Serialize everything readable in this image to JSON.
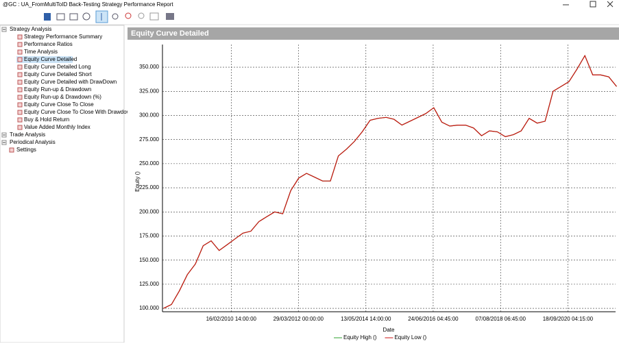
{
  "window": {
    "title": "@GC : UA_FromMultiToID Back-Testing Strategy Performance Report"
  },
  "tree": {
    "sections": [
      {
        "label": "Strategy Analysis",
        "children": [
          "Strategy Performance Summary",
          "Performance Ratios",
          "Time Analysis",
          "Equity Curve Detailed",
          "Equity Curve Detailed Long",
          "Equity Curve Detailed Short",
          "Equity Curve Detailed with DrawDown",
          "Equity Run-up & Drawdown",
          "Equity Run-up & Drawdown (%)",
          "Equity Curve Close To Close",
          "Equity Curve Close To Close With Drawdown",
          "Buy & Hold Return",
          "Value Added Monthly Index"
        ]
      },
      {
        "label": "Trade Analysis"
      },
      {
        "label": "Periodical Analysis"
      },
      {
        "label": "Settings"
      }
    ]
  },
  "panel_title": "Equity Curve Detailed",
  "chart_data": {
    "type": "line",
    "x_label": "Date",
    "y_label": "Equity ()",
    "x": [
      "2008-01-01",
      "2008-04-01",
      "2008-07-01",
      "2008-10-01",
      "2009-01-01",
      "2009-04-01",
      "2009-07-01",
      "2009-10-01",
      "2010-01-01",
      "2010-04-01",
      "2010-07-01",
      "2010-10-01",
      "2011-01-01",
      "2011-04-01",
      "2011-07-01",
      "2011-10-01",
      "2012-01-01",
      "2012-04-01",
      "2012-07-01",
      "2012-10-01",
      "2013-01-01",
      "2013-04-01",
      "2013-07-01",
      "2013-10-01",
      "2014-01-01",
      "2014-04-01",
      "2014-07-01",
      "2014-10-01",
      "2015-01-01",
      "2015-04-01",
      "2015-07-01",
      "2015-10-01",
      "2016-01-01",
      "2016-04-01",
      "2016-07-01",
      "2016-10-01",
      "2017-01-01",
      "2017-04-01",
      "2017-07-01",
      "2017-10-01",
      "2018-01-01",
      "2018-04-01",
      "2018-07-01",
      "2018-10-01",
      "2019-01-01",
      "2019-04-01",
      "2019-07-01",
      "2019-10-01",
      "2020-01-01",
      "2020-04-01",
      "2020-07-01",
      "2020-10-01",
      "2021-01-01",
      "2021-04-01",
      "2021-07-01",
      "2021-10-01",
      "2022-01-01",
      "2022-04-01"
    ],
    "series": [
      {
        "name": "Equity High ()",
        "color": "#2ca02c",
        "values": [
          100000,
          104000,
          118000,
          135000,
          146000,
          165000,
          170000,
          160000,
          166000,
          172000,
          178000,
          180000,
          190000,
          195000,
          200000,
          198000,
          222000,
          235000,
          240000,
          236000,
          232000,
          232000,
          258000,
          265000,
          273000,
          283000,
          295000,
          297000,
          298000,
          296000,
          290000,
          294000,
          298000,
          302000,
          308000,
          293000,
          289000,
          290000,
          290000,
          287000,
          279000,
          284000,
          283000,
          278000,
          280000,
          284000,
          297000,
          292000,
          294000,
          325000,
          330000,
          335000,
          348000,
          362000,
          342000,
          342000,
          340000,
          330000
        ]
      },
      {
        "name": "Equity Low ()",
        "color": "#cc1111",
        "values": [
          100000,
          104000,
          118000,
          135000,
          146000,
          165000,
          170000,
          160000,
          166000,
          172000,
          178000,
          180000,
          190000,
          195000,
          200000,
          198000,
          222000,
          235000,
          240000,
          236000,
          232000,
          232000,
          258000,
          265000,
          273000,
          283000,
          295000,
          297000,
          298000,
          296000,
          290000,
          294000,
          298000,
          302000,
          308000,
          293000,
          289000,
          290000,
          290000,
          287000,
          279000,
          284000,
          283000,
          278000,
          280000,
          284000,
          297000,
          292000,
          294000,
          325000,
          330000,
          335000,
          348000,
          362000,
          342000,
          342000,
          340000,
          330000
        ]
      }
    ],
    "xlim": [
      "2007-12-20",
      "2022-03-20"
    ],
    "xticks": [
      {
        "value": "2010-02-16T14:00:00",
        "label": "16/02/2010 14:00:00"
      },
      {
        "value": "2012-03-29T00:00:00",
        "label": "29/03/2012 00:00:00"
      },
      {
        "value": "2014-05-13T14:00:00",
        "label": "13/05/2014 14:00:00"
      },
      {
        "value": "2016-06-24T04:45:00",
        "label": "24/06/2016 04:45:00"
      },
      {
        "value": "2018-08-07T06:45:00",
        "label": "07/08/2018 06:45:00"
      },
      {
        "value": "2020-09-18T04:15:00",
        "label": "18/09/2020 04:15:00"
      }
    ],
    "ylim": [
      96500,
      373500
    ],
    "yticks": [
      {
        "value": 100000,
        "label": "100.000"
      },
      {
        "value": 125000,
        "label": "125.000"
      },
      {
        "value": 150000,
        "label": "150.000"
      },
      {
        "value": 175000,
        "label": "175.000"
      },
      {
        "value": 200000,
        "label": "200.000"
      },
      {
        "value": 225000,
        "label": "225.000"
      },
      {
        "value": 250000,
        "label": "250.000"
      },
      {
        "value": 275000,
        "label": "275.000"
      },
      {
        "value": 300000,
        "label": "300.000"
      },
      {
        "value": 325000,
        "label": "325.000"
      },
      {
        "value": 350000,
        "label": "350.000"
      }
    ],
    "grid": true
  }
}
